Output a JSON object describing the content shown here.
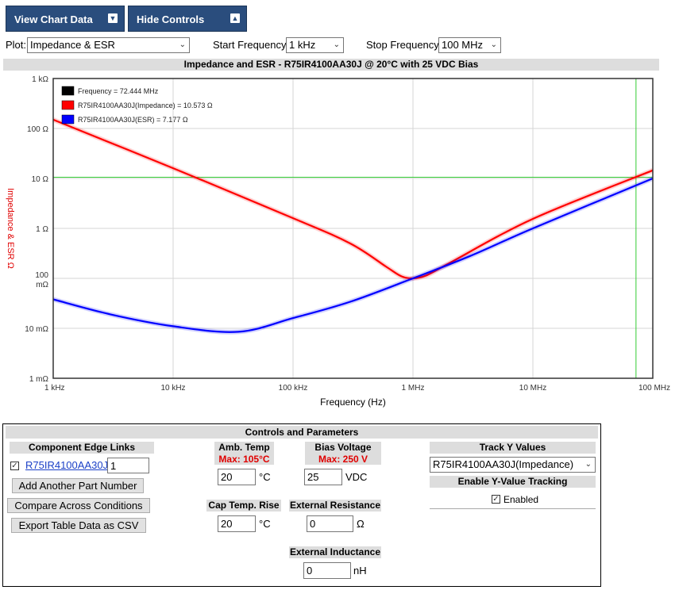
{
  "toolbar": {
    "view_chart_data": "View Chart Data",
    "hide_controls": "Hide Controls"
  },
  "controls_row": {
    "plot_label": "Plot:",
    "plot_value": "Impedance & ESR",
    "start_label": "Start Frequency:",
    "start_value": "1 kHz",
    "stop_label": "Stop Frequency:",
    "stop_value": "100 MHz"
  },
  "chart_data": {
    "type": "line",
    "title": "Impedance and ESR - R75IR4100AA30J @ 20°C with 25 VDC Bias",
    "xlabel": "Frequency (Hz)",
    "ylabel": "Impedance & ESR Ω",
    "x_scale": "log",
    "y_scale": "log",
    "xlim": [
      1000,
      100000000
    ],
    "ylim": [
      0.001,
      1000
    ],
    "x_ticks": [
      {
        "value": 1000,
        "label": "1 kHz"
      },
      {
        "value": 10000,
        "label": "10 kHz"
      },
      {
        "value": 100000,
        "label": "100 kHz"
      },
      {
        "value": 1000000,
        "label": "1 MHz"
      },
      {
        "value": 10000000,
        "label": "10 MHz"
      },
      {
        "value": 100000000,
        "label": "100 MHz"
      }
    ],
    "y_ticks": [
      {
        "value": 1000,
        "label": "1 kΩ"
      },
      {
        "value": 100,
        "label": "100 Ω"
      },
      {
        "value": 10,
        "label": "10 Ω"
      },
      {
        "value": 1,
        "label": "1 Ω"
      },
      {
        "value": 0.1,
        "label": "100 mΩ"
      },
      {
        "value": 0.01,
        "label": "10 mΩ"
      },
      {
        "value": 0.001,
        "label": "1 mΩ"
      }
    ],
    "grid": true,
    "legend_position": "top-left",
    "legend": [
      {
        "label": "Frequency = 72.444 MHz",
        "color": "#000000"
      },
      {
        "label": "R75IR4100AA30J(Impedance) = 10.573 Ω",
        "color": "#ff0000"
      },
      {
        "label": "R75IR4100AA30J(ESR) = 7.177 Ω",
        "color": "#0000ff"
      }
    ],
    "cursor": {
      "x": 72444000,
      "y": 10.573,
      "color": "#33cc33"
    },
    "series": [
      {
        "name": "R75IR4100AA30J(Impedance)",
        "color": "#ff0000",
        "points": [
          [
            1000,
            150
          ],
          [
            10000,
            16
          ],
          [
            100000,
            1.6
          ],
          [
            300000,
            0.5
          ],
          [
            600000,
            0.17
          ],
          [
            800000,
            0.11
          ],
          [
            1000000,
            0.1
          ],
          [
            1300000,
            0.115
          ],
          [
            2000000,
            0.2
          ],
          [
            10000000,
            1.55
          ],
          [
            100000000,
            14.5
          ]
        ]
      },
      {
        "name": "R75IR4100AA30J(ESR)",
        "color": "#0000ff",
        "points": [
          [
            1000,
            0.038
          ],
          [
            3000,
            0.019
          ],
          [
            10000,
            0.011
          ],
          [
            35000,
            0.0085
          ],
          [
            100000,
            0.016
          ],
          [
            300000,
            0.034
          ],
          [
            1000000,
            0.1
          ],
          [
            3000000,
            0.28
          ],
          [
            10000000,
            1.0
          ],
          [
            100000000,
            10
          ]
        ]
      }
    ]
  },
  "panel": {
    "title": "Controls and Parameters",
    "edge_links_header": "Component Edge Links",
    "part_link": "R75IR4100AA30J",
    "part_qty": "1",
    "add_part": "Add Another Part Number",
    "compare": "Compare Across Conditions",
    "export": "Export Table Data as CSV",
    "amb_temp_header": "Amb. Temp",
    "amb_temp_max": "Max: 105°C",
    "amb_temp_value": "20",
    "amb_temp_unit": "°C",
    "bias_header": "Bias Voltage",
    "bias_max": "Max: 250 V",
    "bias_value": "25",
    "bias_unit": "VDC",
    "cap_rise_header": "Cap Temp. Rise",
    "cap_rise_value": "20",
    "cap_rise_unit": "°C",
    "ext_res_header": "External Resistance",
    "ext_res_value": "0",
    "ext_res_unit": "Ω",
    "ext_ind_header": "External Inductance",
    "ext_ind_value": "0",
    "ext_ind_unit": "nH",
    "track_header": "Track Y Values",
    "track_value": "R75IR4100AA30J(Impedance)",
    "enable_header": "Enable Y-Value Tracking",
    "enabled_label": "Enabled"
  }
}
